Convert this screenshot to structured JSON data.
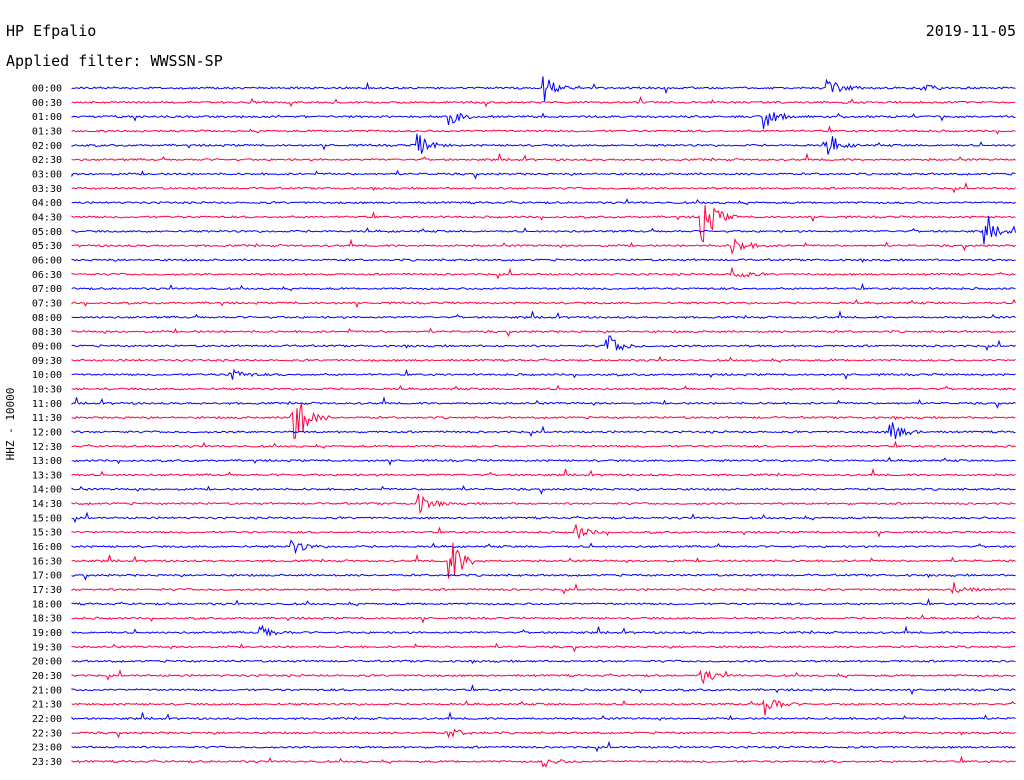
{
  "header": {
    "station": "HP Efpalio",
    "date": "2019-11-05",
    "filter": "Applied filter: WWSSN-SP",
    "side_label": "HHZ - 10000"
  },
  "colors": {
    "blue": "#0000ff",
    "red": "#ff0040",
    "text": "#000000"
  },
  "chart_data": {
    "type": "line",
    "title": "HP Efpalio",
    "subtitle": "Applied filter: WWSSN-SP",
    "ylabel": "HHZ - 10000",
    "xlabel": "",
    "row_labels": [
      "00:00",
      "00:30",
      "01:00",
      "01:30",
      "02:00",
      "02:30",
      "03:00",
      "03:30",
      "04:00",
      "04:30",
      "05:00",
      "05:30",
      "06:00",
      "06:30",
      "07:00",
      "07:30",
      "08:00",
      "08:30",
      "09:00",
      "09:30",
      "10:00",
      "10:30",
      "11:00",
      "11:30",
      "12:00",
      "12:30",
      "13:00",
      "13:30",
      "14:00",
      "14:30",
      "15:00",
      "15:30",
      "16:00",
      "16:30",
      "17:00",
      "17:30",
      "18:00",
      "18:30",
      "19:00",
      "19:30",
      "20:00",
      "20:30",
      "21:00",
      "21:30",
      "22:00",
      "22:30",
      "23:00",
      "23:30"
    ],
    "row_colors": [
      "blue",
      "red"
    ],
    "minutes_per_row": 30,
    "notable_events": [
      {
        "row": "00:00",
        "minute": 24,
        "amplitude": 0.9
      },
      {
        "row": "00:00",
        "minute": 27,
        "amplitude": 0.3
      },
      {
        "row": "00:00",
        "minute": 15,
        "amplitude": 1.0
      },
      {
        "row": "01:00",
        "minute": 12,
        "amplitude": 0.6
      },
      {
        "row": "01:00",
        "minute": 22,
        "amplitude": 1.0
      },
      {
        "row": "02:00",
        "minute": 11,
        "amplitude": 0.8
      },
      {
        "row": "02:00",
        "minute": 24,
        "amplitude": 1.0
      },
      {
        "row": "04:30",
        "minute": 20,
        "amplitude": 2.5
      },
      {
        "row": "05:00",
        "minute": 29,
        "amplitude": 1.0
      },
      {
        "row": "05:30",
        "minute": 21,
        "amplitude": 0.8
      },
      {
        "row": "06:30",
        "minute": 21,
        "amplitude": 0.5
      },
      {
        "row": "09:00",
        "minute": 17,
        "amplitude": 1.0
      },
      {
        "row": "10:00",
        "minute": 5,
        "amplitude": 0.6
      },
      {
        "row": "11:30",
        "minute": 7,
        "amplitude": 3.0
      },
      {
        "row": "12:00",
        "minute": 26,
        "amplitude": 1.0
      },
      {
        "row": "14:30",
        "minute": 11,
        "amplitude": 0.8
      },
      {
        "row": "15:30",
        "minute": 16,
        "amplitude": 0.6
      },
      {
        "row": "16:00",
        "minute": 7,
        "amplitude": 0.6
      },
      {
        "row": "16:30",
        "minute": 12,
        "amplitude": 2.0
      },
      {
        "row": "17:30",
        "minute": 28,
        "amplitude": 0.6
      },
      {
        "row": "19:00",
        "minute": 6,
        "amplitude": 0.6
      },
      {
        "row": "20:30",
        "minute": 20,
        "amplitude": 0.6
      },
      {
        "row": "21:30",
        "minute": 22,
        "amplitude": 1.0
      },
      {
        "row": "22:30",
        "minute": 12,
        "amplitude": 0.4
      },
      {
        "row": "23:30",
        "minute": 15,
        "amplitude": 0.4
      }
    ],
    "grid": false,
    "legend": "none"
  }
}
